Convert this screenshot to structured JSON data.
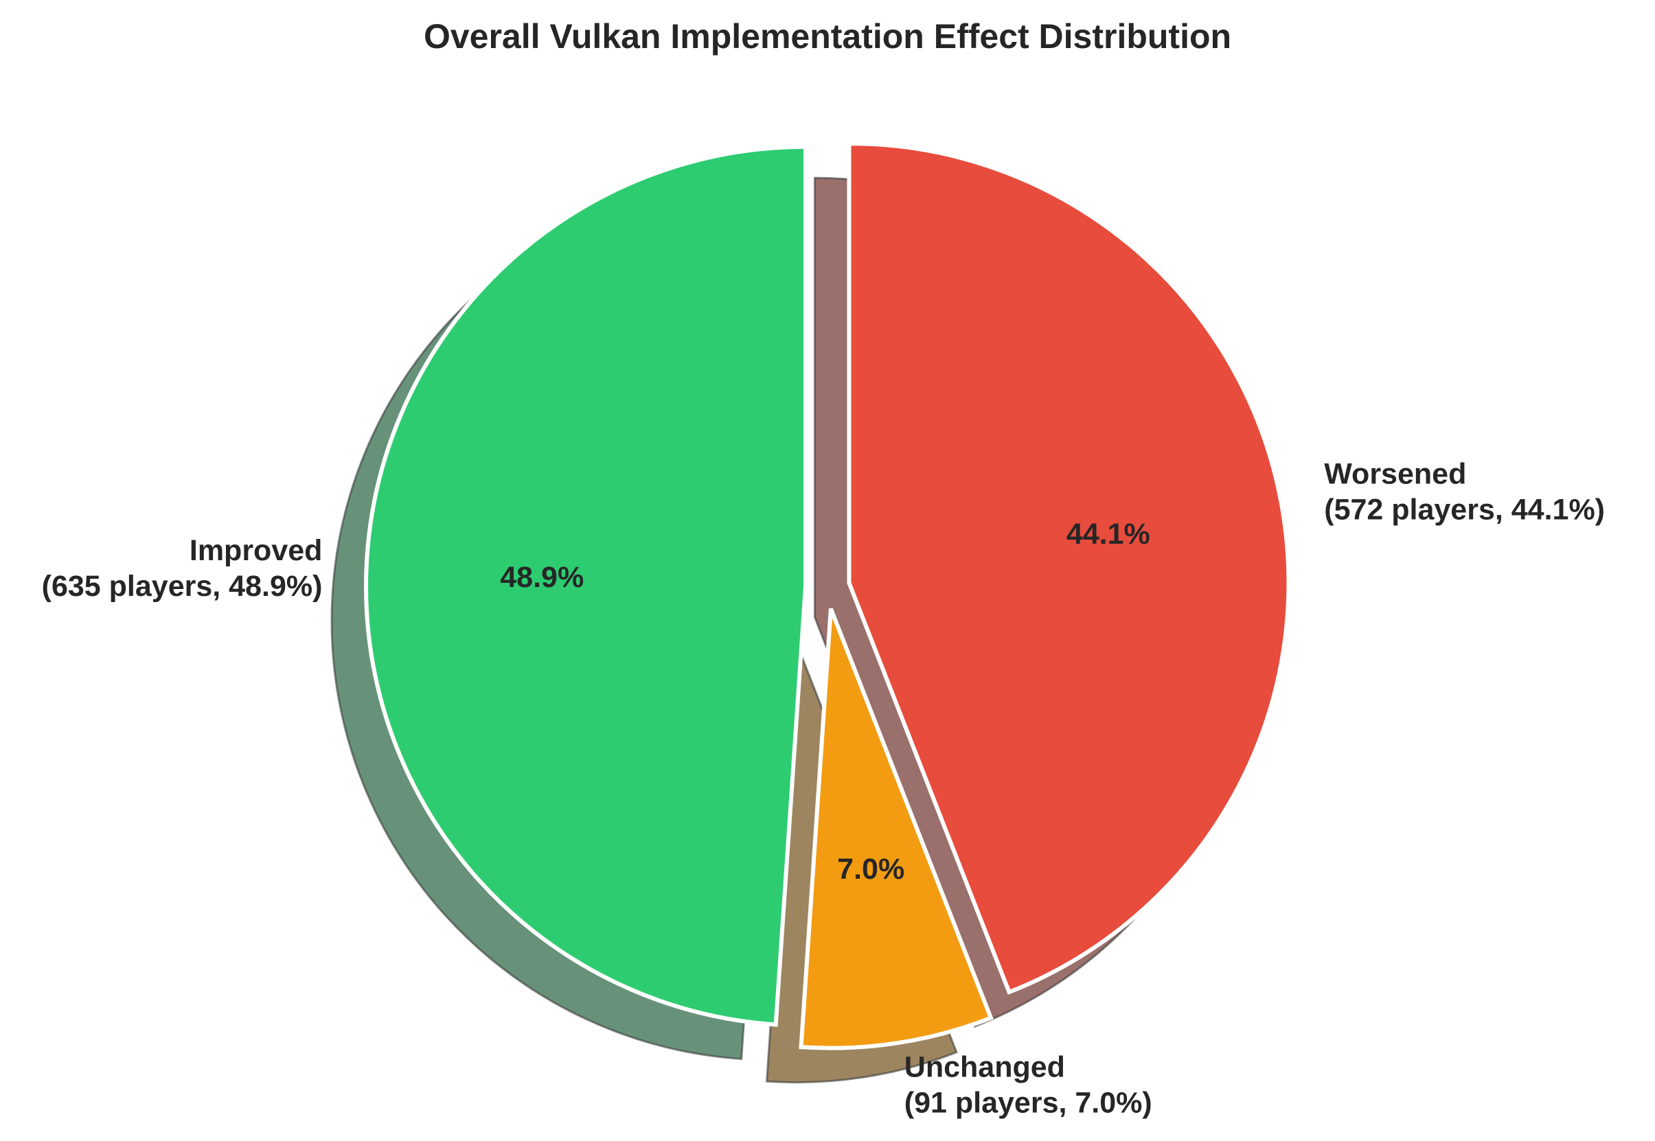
{
  "chart_data": {
    "type": "pie",
    "title": "Overall Vulkan Implementation Effect Distribution",
    "slices": [
      {
        "category": "Improved",
        "count_label": "(635 players, 48.9%)",
        "value": 635,
        "percent": 48.9,
        "pct_text": "48.9%",
        "color": "#2ecc71",
        "explode": 0.05
      },
      {
        "category": "Unchanged",
        "count_label": "(91 players, 7.0%)",
        "value": 91,
        "percent": 7.0,
        "pct_text": "7.0%",
        "color": "#f39c12",
        "explode": 0.05
      },
      {
        "category": "Worsened",
        "count_label": "(572 players, 44.1%)",
        "value": 572,
        "percent": 44.1,
        "pct_text": "44.1%",
        "color": "#e74c3c",
        "explode": 0.05
      }
    ],
    "start_angle_deg": 90,
    "direction": "counterclockwise",
    "shadow": true,
    "legend": "none"
  }
}
